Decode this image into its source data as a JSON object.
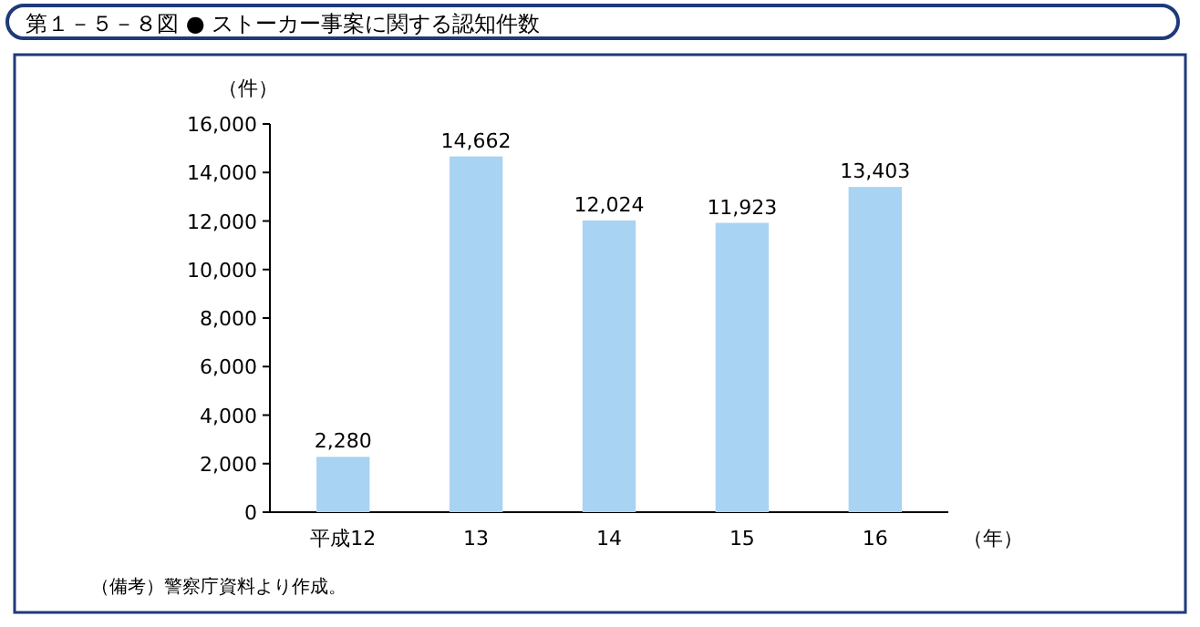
{
  "chart_data": {
    "type": "bar",
    "title": "第１－５－８図 ● ストーカー事案に関する認知件数",
    "categories": [
      "平成12",
      "13",
      "14",
      "15",
      "16"
    ],
    "values": [
      2280,
      14662,
      12024,
      11923,
      13403
    ],
    "value_labels": [
      "2,280",
      "14,662",
      "12,024",
      "11,923",
      "13,403"
    ],
    "color": "#a9d3f2",
    "ylim": [
      0,
      16000
    ],
    "yticks": [
      {
        "value": 0,
        "label": "0"
      },
      {
        "value": 2000,
        "label": "2,000"
      },
      {
        "value": 4000,
        "label": "4,000"
      },
      {
        "value": 6000,
        "label": "6,000"
      },
      {
        "value": 8000,
        "label": "8,000"
      },
      {
        "value": 10000,
        "label": "10,000"
      },
      {
        "value": 12000,
        "label": "12,000"
      },
      {
        "value": 14000,
        "label": "14,000"
      },
      {
        "value": 16000,
        "label": "16,000"
      }
    ],
    "ylabel": "（件）",
    "xlabel": "（年）",
    "annotations": [
      "（備考）警察庁資料より作成。"
    ],
    "grid": false
  }
}
